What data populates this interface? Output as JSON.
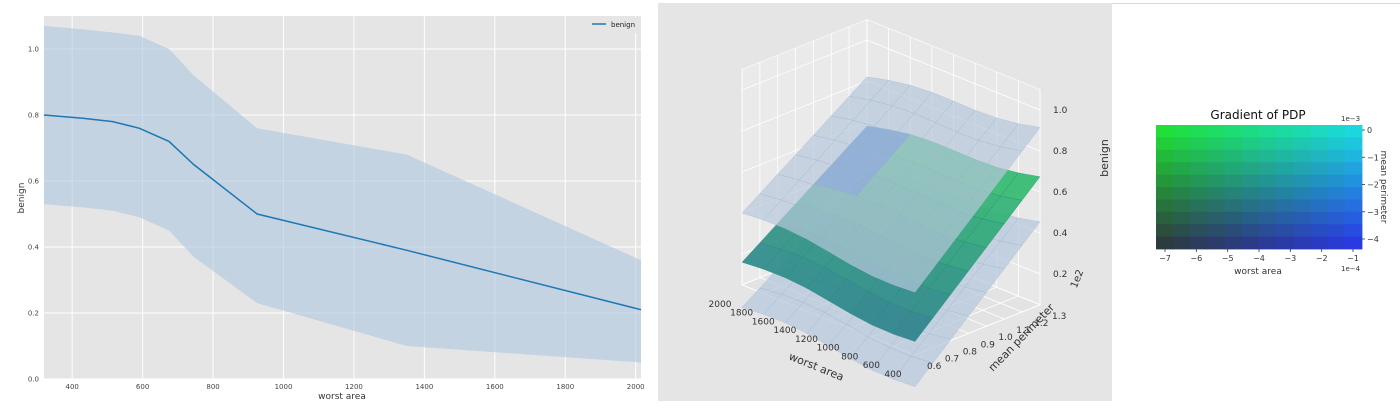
{
  "chart_data": [
    {
      "type": "line",
      "xlabel": "worst area",
      "ylabel": "benign",
      "xlim": [
        320,
        2015
      ],
      "ylim": [
        0.0,
        1.1
      ],
      "x_ticks": [
        "400",
        "600",
        "800",
        "1000",
        "1200",
        "1400",
        "1600",
        "1800",
        "2000"
      ],
      "y_ticks": [
        "0.0",
        "0.2",
        "0.4",
        "0.6",
        "0.8",
        "1.0"
      ],
      "grid": true,
      "legend_position": "top-right",
      "series": [
        {
          "name": "benign",
          "color": "#1f77b4",
          "x": [
            320,
            430,
            515,
            590,
            675,
            745,
            925,
            1350,
            2015
          ],
          "mean": [
            0.8,
            0.79,
            0.78,
            0.76,
            0.72,
            0.65,
            0.5,
            0.39,
            0.21
          ],
          "upper": [
            1.07,
            1.06,
            1.05,
            1.04,
            1.0,
            0.92,
            0.76,
            0.68,
            0.36
          ],
          "lower": [
            0.53,
            0.52,
            0.51,
            0.49,
            0.45,
            0.37,
            0.23,
            0.1,
            0.05
          ]
        }
      ]
    },
    {
      "type": "surface",
      "xlabel": "worst area",
      "ylabel": "mean perimeter",
      "zlabel": "benign",
      "y_offset_label": "1e2",
      "x_ticks": [
        "2000",
        "1800",
        "1600",
        "1400",
        "1200",
        "1000",
        "800",
        "600",
        "400"
      ],
      "y_ticks": [
        "0.6",
        "0.7",
        "0.8",
        "0.9",
        "1.0",
        "1.1",
        "1.2",
        "1.3"
      ],
      "z_ticks": [
        "0.2",
        "0.4",
        "0.6",
        "0.8",
        "1.0"
      ],
      "surfaces": [
        "upper bound",
        "mean",
        "lower bound"
      ]
    },
    {
      "type": "heatmap",
      "title": "Gradient of PDP",
      "xlabel": "worst area",
      "ylabel": "mean perimeter",
      "x_ticks": [
        "−7",
        "−6",
        "−5",
        "−4",
        "−3",
        "−2",
        "−1"
      ],
      "y_ticks": [
        "0",
        "−1",
        "−2",
        "−3",
        "−4"
      ],
      "x_offset_label": "1e−4",
      "y_offset_label": "1e−3",
      "grid_size": [
        12,
        10
      ],
      "colors": {
        "top_left": "#1fe830",
        "top_right": "#1ae0e4",
        "bottom_left": "#2d3337",
        "bottom_right": "#2a32e8"
      }
    }
  ]
}
